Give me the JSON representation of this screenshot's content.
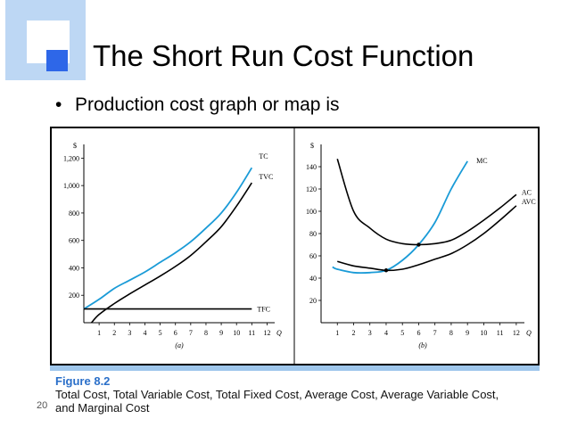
{
  "slide": {
    "title": "The Short Run Cost Function",
    "bullet": "Production cost graph or map is",
    "slide_number": "20"
  },
  "figure": {
    "label": "Figure 8.2",
    "caption": "Total Cost, Total Variable Cost, Total Fixed Cost, Average Cost, Average Variable Cost, and Marginal Cost"
  },
  "colors": {
    "accent": "#2e67e8",
    "teal": "#1a9bd7",
    "deco": "#bdd7f4",
    "caption_bar": "#9fc7ec"
  },
  "chart_data": [
    {
      "type": "line",
      "panel_label": "(a)",
      "ylabel": "$",
      "xlabel": "Q",
      "x_ticks": [
        "1",
        "2",
        "3",
        "4",
        "5",
        "6",
        "7",
        "8",
        "9",
        "10",
        "11",
        "12"
      ],
      "y_ticks": [
        "200",
        "400",
        "600",
        "800",
        "1,000",
        "1,200"
      ],
      "xlim": [
        0,
        12.5
      ],
      "ylim": [
        0,
        1300
      ],
      "series": [
        {
          "name": "TC",
          "color": "#1a9bd7",
          "x": [
            0,
            1,
            2,
            3,
            4,
            5,
            6,
            7,
            8,
            9,
            10,
            11
          ],
          "values": [
            100,
            170,
            250,
            310,
            370,
            440,
            510,
            590,
            690,
            800,
            950,
            1130
          ]
        },
        {
          "name": "TVC",
          "color": "#000000",
          "x": [
            0.5,
            1,
            2,
            3,
            4,
            5,
            6,
            7,
            8,
            9,
            10,
            11
          ],
          "values": [
            0,
            60,
            140,
            210,
            275,
            340,
            410,
            490,
            590,
            700,
            850,
            1020
          ]
        },
        {
          "name": "TFC",
          "color": "#000000",
          "x": [
            0,
            11
          ],
          "values": [
            100,
            100
          ]
        }
      ]
    },
    {
      "type": "line",
      "panel_label": "(b)",
      "ylabel": "$",
      "xlabel": "Q",
      "x_ticks": [
        "1",
        "2",
        "3",
        "4",
        "5",
        "6",
        "7",
        "8",
        "9",
        "10",
        "11",
        "12"
      ],
      "y_ticks": [
        "20",
        "40",
        "60",
        "80",
        "100",
        "120",
        "140"
      ],
      "xlim": [
        0,
        12.5
      ],
      "ylim": [
        0,
        160
      ],
      "series": [
        {
          "name": "MC",
          "color": "#1a9bd7",
          "x": [
            0.7,
            1,
            2,
            3,
            4,
            5,
            6,
            7,
            8,
            9
          ],
          "values": [
            50,
            48,
            45,
            45,
            47,
            56,
            70,
            90,
            120,
            145
          ]
        },
        {
          "name": "AC",
          "color": "#000000",
          "x": [
            1,
            2,
            3,
            4,
            5,
            6,
            7,
            8,
            9,
            10,
            11,
            12
          ],
          "values": [
            147,
            100,
            85,
            75,
            71,
            70,
            71,
            74,
            82,
            92,
            103,
            115
          ]
        },
        {
          "name": "AVC",
          "color": "#000000",
          "x": [
            1,
            2,
            3,
            4,
            5,
            6,
            7,
            8,
            9,
            10,
            11,
            12
          ],
          "values": [
            55,
            51,
            49,
            47,
            48,
            52,
            57,
            62,
            70,
            80,
            92,
            105
          ]
        }
      ],
      "points": [
        {
          "x": 4,
          "y": 47
        },
        {
          "x": 6,
          "y": 70
        }
      ]
    }
  ]
}
